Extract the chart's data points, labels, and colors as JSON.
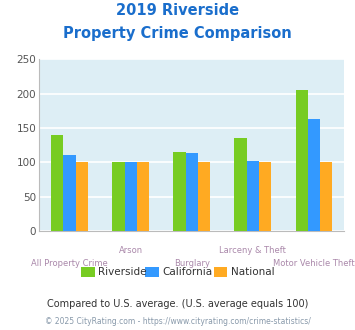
{
  "title_line1": "2019 Riverside",
  "title_line2": "Property Crime Comparison",
  "categories": [
    "All Property Crime",
    "Arson",
    "Burglary",
    "Larceny & Theft",
    "Motor Vehicle Theft"
  ],
  "series": {
    "Riverside": [
      140,
      100,
      115,
      136,
      205
    ],
    "California": [
      110,
      100,
      113,
      102,
      163
    ],
    "National": [
      100,
      100,
      100,
      100,
      100
    ]
  },
  "colors": {
    "Riverside": "#77cc22",
    "California": "#3399ff",
    "National": "#ffaa22"
  },
  "ylim": [
    0,
    250
  ],
  "yticks": [
    0,
    50,
    100,
    150,
    200,
    250
  ],
  "bg_color": "#ddeef5",
  "grid_color": "#ffffff",
  "title_color": "#1a6ecc",
  "xlabel_color": "#aa88aa",
  "legend_text_color": "#333333",
  "footnote1": "Compared to U.S. average. (U.S. average equals 100)",
  "footnote2": "© 2025 CityRating.com - https://www.cityrating.com/crime-statistics/",
  "footnote1_color": "#333333",
  "footnote2_color": "#8899aa"
}
